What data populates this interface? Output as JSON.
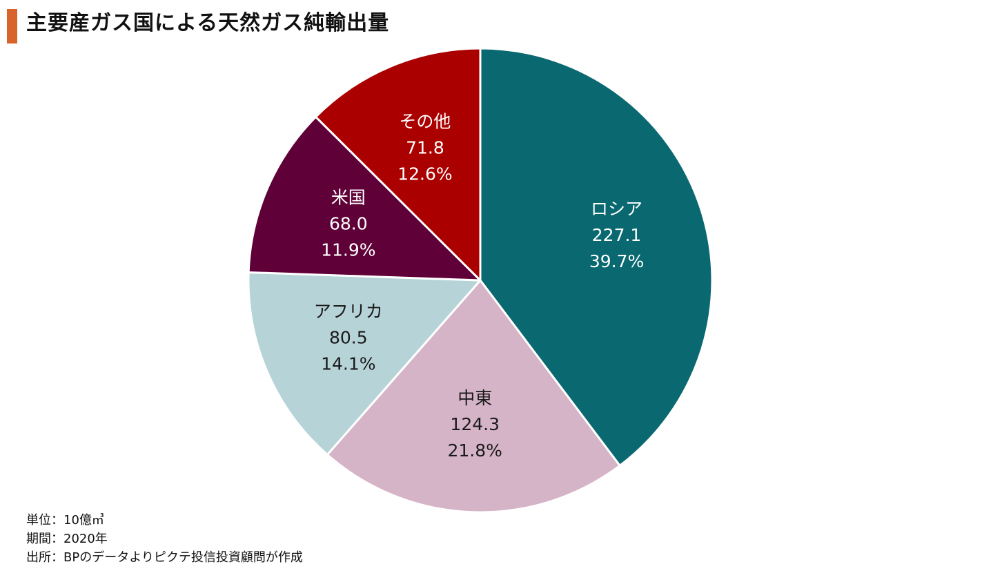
{
  "header": {
    "title": "主要産ガス国による天然ガス純輸出量",
    "accent_color": "#d9642b"
  },
  "chart_data": {
    "type": "pie",
    "title": "主要産ガス国による天然ガス純輸出量",
    "start_angle_deg": 0,
    "direction": "clockwise",
    "slices": [
      {
        "label": "ロシア",
        "value": 227.1,
        "value_text": "227.1",
        "percent_text": "39.7%",
        "color": "#0a6870",
        "text_color": "#ffffff"
      },
      {
        "label": "中東",
        "value": 124.3,
        "value_text": "124.3",
        "percent_text": "21.8%",
        "color": "#d6b4c8",
        "text_color": "#1a1a1a"
      },
      {
        "label": "アフリカ",
        "value": 80.5,
        "value_text": "80.5",
        "percent_text": "14.1%",
        "color": "#b6d3d7",
        "text_color": "#1a1a1a"
      },
      {
        "label": "米国",
        "value": 68.0,
        "value_text": "68.0",
        "percent_text": "11.9%",
        "color": "#600038",
        "text_color": "#ffffff"
      },
      {
        "label": "その他",
        "value": 71.8,
        "value_text": "71.8",
        "percent_text": "12.6%",
        "color": "#aa0000",
        "text_color": "#ffffff"
      }
    ],
    "legend": "none"
  },
  "notes": {
    "unit": "単位：10億㎥",
    "period": "期間：2020年",
    "source": "出所：BPのデータよりピクテ投信投資顧問が作成"
  }
}
